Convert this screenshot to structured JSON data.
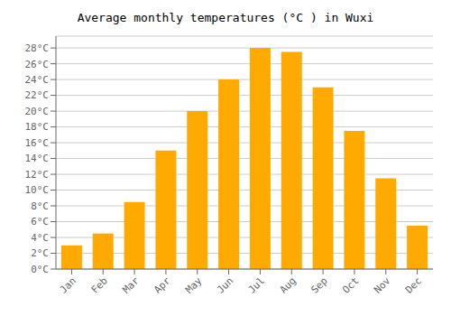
{
  "chart_data": {
    "type": "bar",
    "title": "Average monthly temperatures (°C ) in Wuxi",
    "categories": [
      "Jan",
      "Feb",
      "Mar",
      "Apr",
      "May",
      "Jun",
      "Jul",
      "Aug",
      "Sep",
      "Oct",
      "Nov",
      "Dec"
    ],
    "values": [
      3,
      4.5,
      8.5,
      15,
      20,
      24,
      28,
      27.5,
      23,
      17.5,
      11.5,
      5.5
    ],
    "color": "#FFAA00",
    "ylim": [
      0,
      29.5
    ],
    "yticks": [
      {
        "value": 0,
        "label": "0°C"
      },
      {
        "value": 2,
        "label": "2°C"
      },
      {
        "value": 4,
        "label": "4°C"
      },
      {
        "value": 6,
        "label": "6°C"
      },
      {
        "value": 8,
        "label": "8°C"
      },
      {
        "value": 10,
        "label": "10°C"
      },
      {
        "value": 12,
        "label": "12°C"
      },
      {
        "value": 14,
        "label": "14°C"
      },
      {
        "value": 16,
        "label": "16°C"
      },
      {
        "value": 18,
        "label": "18°C"
      },
      {
        "value": 20,
        "label": "20°C"
      },
      {
        "value": 22,
        "label": "22°C"
      },
      {
        "value": 24,
        "label": "24°C"
      },
      {
        "value": 26,
        "label": "26°C"
      },
      {
        "value": 28,
        "label": "28°C"
      }
    ],
    "grid": true
  }
}
